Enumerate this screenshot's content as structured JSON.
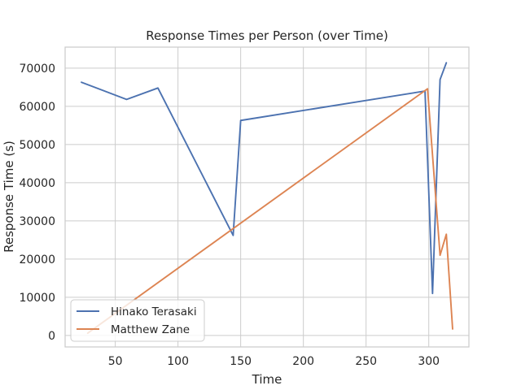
{
  "chart_data": {
    "type": "line",
    "title": "Response Times per Person (over Time)",
    "xlabel": "Time",
    "ylabel": "Response Time (s)",
    "xlim": [
      10,
      332
    ],
    "ylim": [
      -3000,
      75500
    ],
    "xticks": [
      50,
      100,
      150,
      200,
      250,
      300
    ],
    "yticks": [
      0,
      10000,
      20000,
      30000,
      40000,
      50000,
      60000,
      70000
    ],
    "grid": true,
    "legend_position": "lower-left",
    "series": [
      {
        "name": "Hinako Terasaki",
        "color": "#4c72b0",
        "x": [
          23,
          59,
          84,
          144,
          150,
          297,
          303,
          309,
          314
        ],
        "y": [
          66300,
          61800,
          64800,
          26200,
          56300,
          64000,
          11000,
          67000,
          71400
        ]
      },
      {
        "name": "Matthew Zane",
        "color": "#dd8452",
        "x": [
          28,
          299,
          309,
          314,
          319
        ],
        "y": [
          600,
          64600,
          21000,
          26500,
          1700
        ]
      }
    ]
  }
}
